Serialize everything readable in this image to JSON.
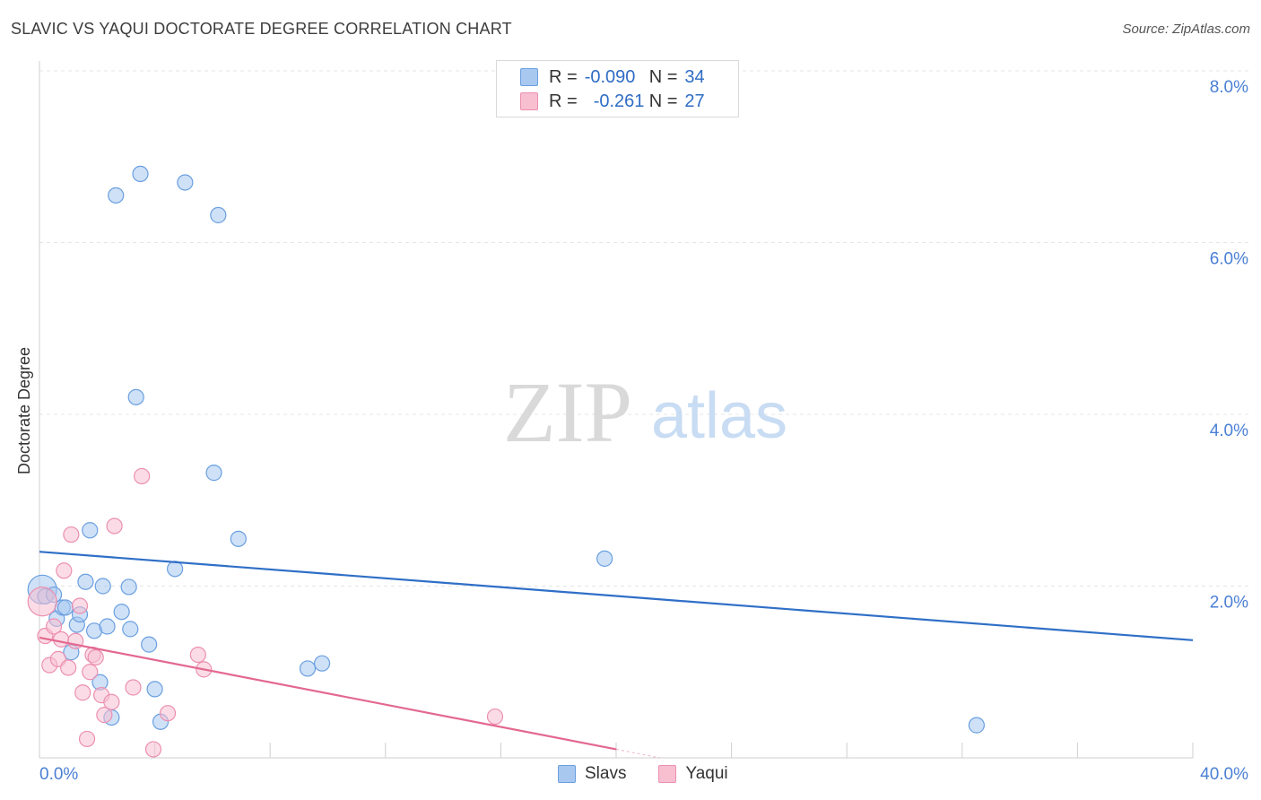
{
  "header": {
    "title": "SLAVIC VS YAQUI DOCTORATE DEGREE CORRELATION CHART",
    "source": "Source: ZipAtlas.com"
  },
  "legend": {
    "rows": [
      {
        "r_label": "R =",
        "r_value": "-0.090",
        "n_label": "N =",
        "n_value": "34"
      },
      {
        "r_label": "R =",
        "r_value": "-0.261",
        "n_label": "N =",
        "n_value": "27"
      }
    ],
    "series": [
      "Slavs",
      "Yaqui"
    ]
  },
  "colors": {
    "slavs_fill": "#a8c8f0",
    "slavs_stroke": "#6a9fe0",
    "slavs_line": "#2f6fc7",
    "yaqui_fill": "#f8bfd1",
    "yaqui_stroke": "#ec8fb0",
    "yaqui_line": "#e3688f",
    "axis_label": "#4a7fd4",
    "grid": "#e4e4e4"
  },
  "watermark": {
    "zip": "ZIP",
    "atlas": "atlas"
  },
  "chart_data": {
    "type": "scatter",
    "title": "SLAVIC VS YAQUI DOCTORATE DEGREE CORRELATION CHART",
    "xlabel": "",
    "ylabel": "Doctorate Degree",
    "xlim": [
      0,
      40
    ],
    "ylim": [
      0,
      8
    ],
    "x_tick_labels": [
      "0.0%",
      "40.0%"
    ],
    "y_ticks": [
      2,
      4,
      6,
      8
    ],
    "y_tick_labels": [
      "2.0%",
      "4.0%",
      "6.0%",
      "8.0%"
    ],
    "grid": true,
    "series": [
      {
        "name": "Slavs",
        "r": -0.09,
        "n": 34,
        "trend": {
          "x": [
            0,
            40
          ],
          "y": [
            2.4,
            1.37
          ]
        },
        "points": [
          {
            "x": 0.1,
            "y": 1.96,
            "big": true
          },
          {
            "x": 0.2,
            "y": 1.88
          },
          {
            "x": 0.5,
            "y": 1.9
          },
          {
            "x": 0.6,
            "y": 1.62
          },
          {
            "x": 0.8,
            "y": 1.75
          },
          {
            "x": 0.9,
            "y": 1.75
          },
          {
            "x": 1.1,
            "y": 1.23
          },
          {
            "x": 1.3,
            "y": 1.55
          },
          {
            "x": 1.4,
            "y": 1.67
          },
          {
            "x": 1.6,
            "y": 2.05
          },
          {
            "x": 1.75,
            "y": 2.65
          },
          {
            "x": 1.9,
            "y": 1.48
          },
          {
            "x": 2.1,
            "y": 0.88
          },
          {
            "x": 2.2,
            "y": 2.0
          },
          {
            "x": 2.35,
            "y": 1.53
          },
          {
            "x": 2.5,
            "y": 0.47
          },
          {
            "x": 2.65,
            "y": 6.55
          },
          {
            "x": 2.85,
            "y": 1.7
          },
          {
            "x": 3.1,
            "y": 1.99
          },
          {
            "x": 3.15,
            "y": 1.5
          },
          {
            "x": 3.35,
            "y": 4.2
          },
          {
            "x": 3.5,
            "y": 6.8
          },
          {
            "x": 3.8,
            "y": 1.32
          },
          {
            "x": 4.0,
            "y": 0.8
          },
          {
            "x": 4.2,
            "y": 0.42
          },
          {
            "x": 4.7,
            "y": 2.2
          },
          {
            "x": 5.05,
            "y": 6.7
          },
          {
            "x": 6.05,
            "y": 3.32
          },
          {
            "x": 6.2,
            "y": 6.32
          },
          {
            "x": 6.9,
            "y": 2.55
          },
          {
            "x": 9.3,
            "y": 1.04
          },
          {
            "x": 9.8,
            "y": 1.1
          },
          {
            "x": 19.6,
            "y": 2.32
          },
          {
            "x": 32.5,
            "y": 0.38
          }
        ]
      },
      {
        "name": "Yaqui",
        "r": -0.261,
        "n": 27,
        "trend": {
          "x": [
            0,
            20
          ],
          "y": [
            1.4,
            0.1
          ]
        },
        "trend_dashed_extension": {
          "x": [
            20,
            21.5
          ],
          "y": [
            0.1,
            0.0
          ]
        },
        "points": [
          {
            "x": 0.1,
            "y": 1.82,
            "big": true
          },
          {
            "x": 0.2,
            "y": 1.42
          },
          {
            "x": 0.35,
            "y": 1.08
          },
          {
            "x": 0.5,
            "y": 1.53
          },
          {
            "x": 0.65,
            "y": 1.15
          },
          {
            "x": 0.75,
            "y": 1.38
          },
          {
            "x": 0.85,
            "y": 2.18
          },
          {
            "x": 1.0,
            "y": 1.05
          },
          {
            "x": 1.1,
            "y": 2.6
          },
          {
            "x": 1.25,
            "y": 1.36
          },
          {
            "x": 1.4,
            "y": 1.77
          },
          {
            "x": 1.5,
            "y": 0.76
          },
          {
            "x": 1.65,
            "y": 0.22
          },
          {
            "x": 1.75,
            "y": 1.0
          },
          {
            "x": 1.85,
            "y": 1.2
          },
          {
            "x": 1.95,
            "y": 1.17
          },
          {
            "x": 2.15,
            "y": 0.73
          },
          {
            "x": 2.25,
            "y": 0.5
          },
          {
            "x": 2.5,
            "y": 0.65
          },
          {
            "x": 2.6,
            "y": 2.7
          },
          {
            "x": 3.25,
            "y": 0.82
          },
          {
            "x": 3.55,
            "y": 3.28
          },
          {
            "x": 3.95,
            "y": 0.1
          },
          {
            "x": 4.45,
            "y": 0.52
          },
          {
            "x": 5.5,
            "y": 1.2
          },
          {
            "x": 5.7,
            "y": 1.03
          },
          {
            "x": 15.8,
            "y": 0.48
          }
        ]
      }
    ]
  }
}
